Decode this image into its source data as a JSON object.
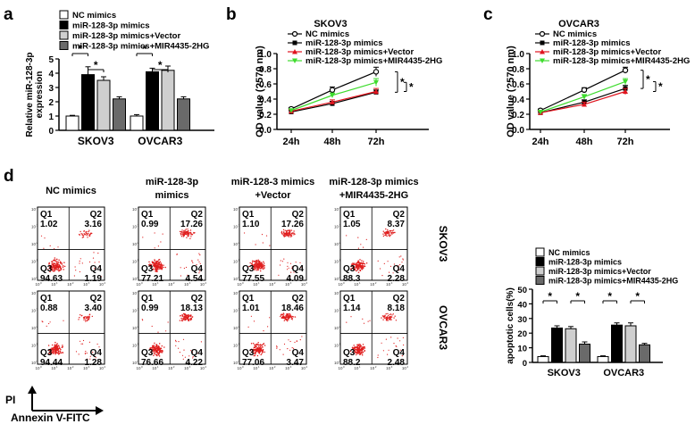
{
  "colors": {
    "nc": "#ffffff",
    "mir": "#000000",
    "vector": "#cfcfcf",
    "mir4435": "#6a6a6a",
    "line_nc": "#000000",
    "line_mir": "#000000",
    "line_vector": "#e0141e",
    "line_mir4435": "#3fdc2e",
    "dot": "#e01e1e"
  },
  "panel_labels": {
    "a": "a",
    "b": "b",
    "c": "c",
    "d": "d"
  },
  "chart_data": [
    {
      "id": "a",
      "type": "bar",
      "categories": [
        "SKOV3",
        "OVCAR3"
      ],
      "series": [
        {
          "name": "NC mimics",
          "values": [
            1.0,
            1.0
          ],
          "errors": [
            0.05,
            0.1
          ]
        },
        {
          "name": "miR-128-3p mimics",
          "values": [
            3.9,
            4.1
          ],
          "errors": [
            0.55,
            0.25
          ]
        },
        {
          "name": "miR-128-3p mimics+Vector",
          "values": [
            3.5,
            4.2
          ],
          "errors": [
            0.25,
            0.3
          ]
        },
        {
          "name": "miR-128-3p mimics+MIR4435-2HG",
          "values": [
            2.2,
            2.2
          ],
          "errors": [
            0.15,
            0.15
          ]
        }
      ],
      "ylabel_lines": [
        "Relative miR-128-3p",
        "expression"
      ],
      "ylim": [
        0,
        5
      ],
      "yticks": [
        "0",
        "1",
        "2",
        "3",
        "4",
        "5"
      ],
      "significance": "*"
    },
    {
      "id": "b",
      "type": "line",
      "title": "SKOV3",
      "x": [
        "24h",
        "48h",
        "72h"
      ],
      "series": [
        {
          "name": "NC mimics",
          "values": [
            0.27,
            0.52,
            0.76
          ],
          "errors": [
            0.02,
            0.04,
            0.06
          ]
        },
        {
          "name": "miR-128-3p mimics",
          "values": [
            0.23,
            0.34,
            0.49
          ],
          "errors": [
            0.02,
            0.03,
            0.03
          ]
        },
        {
          "name": "miR-128-3p mimics+Vector",
          "values": [
            0.24,
            0.36,
            0.5
          ],
          "errors": [
            0.02,
            0.03,
            0.04
          ]
        },
        {
          "name": "miR-128-3p mimics+MIR4435-2HG",
          "values": [
            0.25,
            0.45,
            0.62
          ],
          "errors": [
            0.02,
            0.03,
            0.05
          ]
        }
      ],
      "ylabel": "OD value (?570 nm)",
      "ylim": [
        0,
        1.0
      ],
      "yticks": [
        "0.0",
        "0.2",
        "0.4",
        "0.6",
        "0.8",
        "1.0"
      ],
      "significance": "*"
    },
    {
      "id": "c",
      "type": "line",
      "title": "OVCAR3",
      "x": [
        "24h",
        "48h",
        "72h"
      ],
      "series": [
        {
          "name": "NC mimics",
          "values": [
            0.25,
            0.52,
            0.78
          ],
          "errors": [
            0.02,
            0.03,
            0.04
          ]
        },
        {
          "name": "miR-128-3p mimics",
          "values": [
            0.22,
            0.36,
            0.54
          ],
          "errors": [
            0.02,
            0.03,
            0.04
          ]
        },
        {
          "name": "miR-128-3p mimics+Vector",
          "values": [
            0.22,
            0.33,
            0.5
          ],
          "errors": [
            0.02,
            0.03,
            0.04
          ]
        },
        {
          "name": "miR-128-3p mimics+MIR4435-2HG",
          "values": [
            0.23,
            0.43,
            0.63
          ],
          "errors": [
            0.02,
            0.03,
            0.04
          ]
        }
      ],
      "ylabel": "OD value (?570 nm)",
      "ylim": [
        0,
        1.0
      ],
      "yticks": [
        "0.0",
        "0.2",
        "0.4",
        "0.6",
        "0.8",
        "1.0"
      ],
      "significance": "*"
    },
    {
      "id": "d_bar",
      "type": "bar",
      "categories": [
        "SKOV3",
        "OVCAR3"
      ],
      "series": [
        {
          "name": "NC mimics",
          "values": [
            4.0,
            4.0
          ],
          "errors": [
            0.5,
            0.5
          ]
        },
        {
          "name": "miR-128-3p mimics",
          "values": [
            23.5,
            25.5
          ],
          "errors": [
            1.5,
            1.5
          ]
        },
        {
          "name": "miR-128-3p mimics+Vector",
          "values": [
            23.0,
            25.0
          ],
          "errors": [
            1.5,
            2.0
          ]
        },
        {
          "name": "miR-128-3p mimics+MIR4435-2HG",
          "values": [
            12.5,
            12.0
          ],
          "errors": [
            1.5,
            1.0
          ]
        }
      ],
      "ylabel": "apoptotic cells(%)",
      "ylim": [
        0,
        50
      ],
      "yticks": [
        "0",
        "10",
        "20",
        "30",
        "40",
        "50"
      ],
      "significance": "*"
    },
    {
      "id": "d_flow",
      "type": "scatter",
      "columns": [
        "NC mimics",
        "miR-128-3p mimics",
        "miR-128-3 mimics +Vector",
        "miR-128-3p mimics +MIR4435-2HG"
      ],
      "column_header_lines": [
        [
          "NC mimics"
        ],
        [
          "miR-128-3p",
          "mimics"
        ],
        [
          "miR-128-3 mimics",
          "+Vector"
        ],
        [
          "miR-128-3p mimics",
          "+MIR4435-2HG"
        ]
      ],
      "rows": [
        "SKOV3",
        "OVCAR3"
      ],
      "quadrant_labels": [
        "Q1",
        "Q2",
        "Q3",
        "Q4"
      ],
      "quadrant_values": [
        [
          [
            "1.02",
            "3.16",
            "94.63",
            "1.19"
          ],
          [
            "0.99",
            "17.26",
            "77.21",
            "4.54"
          ],
          [
            "1.10",
            "17.26",
            "77.55",
            "4.09"
          ],
          [
            "1.05",
            "8.37",
            "88.3",
            "2.28"
          ]
        ],
        [
          [
            "0.88",
            "3.40",
            "94.44",
            "1.28"
          ],
          [
            "0.99",
            "18.13",
            "76.66",
            "4.22"
          ],
          [
            "1.01",
            "18.46",
            "77.06",
            "3.47"
          ],
          [
            "1.14",
            "8.18",
            "88.2",
            "2.48"
          ]
        ]
      ],
      "axis_tick_labels": [
        "10",
        "10",
        "10",
        "10",
        "10"
      ],
      "axis_tick_exponents": [
        "0",
        "1",
        "2",
        "3",
        "4"
      ],
      "y_axis_label": "PI",
      "x_axis_label": "Annexin V-FITC"
    }
  ]
}
